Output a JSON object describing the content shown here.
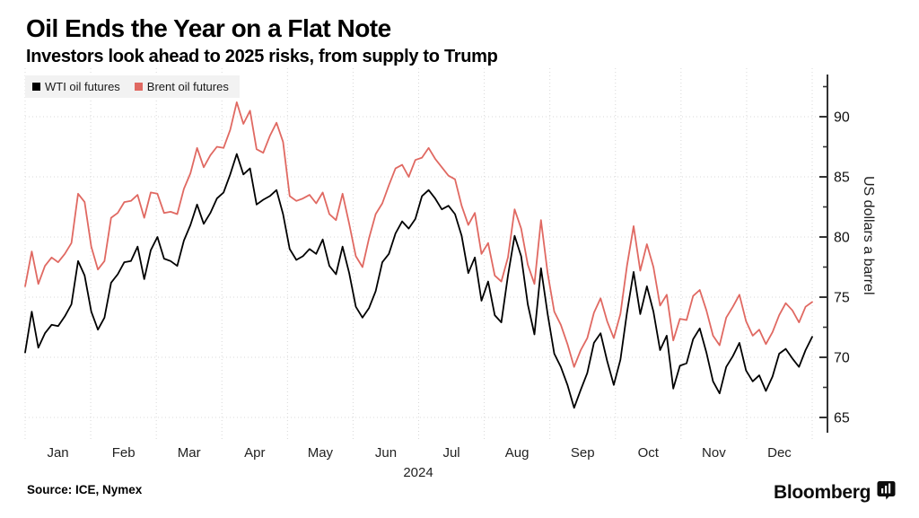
{
  "header": {
    "title": "Oil Ends the Year on a Flat Note",
    "subtitle": "Investors look ahead to 2025 risks, from supply to Trump"
  },
  "legend": [
    {
      "label": "WTI oil futures"
    },
    {
      "label": "Brent oil futures"
    }
  ],
  "footer": {
    "source": "Source: ICE, Nymex",
    "brand": "Bloomberg"
  },
  "chart_data": {
    "type": "line",
    "title": "Oil Ends the Year on a Flat Note",
    "subtitle": "Investors look ahead to 2025 risks, from supply to Trump",
    "xlabel": "2024",
    "ylabel": "US dollars a barrel",
    "x_categories": [
      "Jan",
      "Feb",
      "Mar",
      "Apr",
      "May",
      "Jun",
      "Jul",
      "Aug",
      "Sep",
      "Oct",
      "Nov",
      "Dec"
    ],
    "points_per_month": 10,
    "ylim": [
      63.2,
      93.9
    ],
    "yticks_major": [
      65,
      70,
      75,
      80,
      85,
      90
    ],
    "yticks_minor": [
      67.5,
      72.5,
      77.5,
      82.5,
      87.5,
      92.5
    ],
    "grid": "dotted",
    "legend_position": "top-left",
    "axis_side": "right",
    "colors": {
      "grid": "#d8d8d8",
      "axis": "#333333",
      "tick_label": "#111111",
      "month_label": "#222222"
    },
    "series": [
      {
        "name": "WTI oil futures",
        "id": "wti-line",
        "color": "#000000",
        "values": [
          70.4,
          73.8,
          70.8,
          72.0,
          72.7,
          72.6,
          73.4,
          74.4,
          78.0,
          76.8,
          73.8,
          72.3,
          73.3,
          76.2,
          76.9,
          77.9,
          78.0,
          79.2,
          76.5,
          78.9,
          80.0,
          78.2,
          78.0,
          77.6,
          79.7,
          81.0,
          82.7,
          81.1,
          82.0,
          83.2,
          83.7,
          85.2,
          86.9,
          85.2,
          85.7,
          82.7,
          83.1,
          83.4,
          83.9,
          81.9,
          79.0,
          78.1,
          78.4,
          79.0,
          78.6,
          79.8,
          77.6,
          76.9,
          79.2,
          77.0,
          74.2,
          73.3,
          74.1,
          75.5,
          77.9,
          78.6,
          80.3,
          81.3,
          80.7,
          81.5,
          83.4,
          83.9,
          83.2,
          82.3,
          82.6,
          81.9,
          80.1,
          77.0,
          78.3,
          74.7,
          76.3,
          73.5,
          72.9,
          76.8,
          80.1,
          78.4,
          74.4,
          71.9,
          77.4,
          73.6,
          70.3,
          69.2,
          67.7,
          65.8,
          67.3,
          68.7,
          71.2,
          72.0,
          69.7,
          67.7,
          69.8,
          73.7,
          77.1,
          73.6,
          75.9,
          73.8,
          70.6,
          71.8,
          67.4,
          69.3,
          69.5,
          71.5,
          72.4,
          70.4,
          68.0,
          67.0,
          69.2,
          70.1,
          71.2,
          68.9,
          68.0,
          68.5,
          67.2,
          68.4,
          70.3,
          70.7,
          69.9,
          69.2,
          70.6,
          71.7
        ]
      },
      {
        "name": "Brent oil futures",
        "id": "brent-line",
        "color": "#e06962",
        "values": [
          75.9,
          78.8,
          76.1,
          77.6,
          78.3,
          77.9,
          78.6,
          79.5,
          83.6,
          82.9,
          79.2,
          77.3,
          78.0,
          81.6,
          82.0,
          82.9,
          83.0,
          83.5,
          81.6,
          83.7,
          83.6,
          82.0,
          82.1,
          81.9,
          84.0,
          85.3,
          87.4,
          85.8,
          86.8,
          87.5,
          87.4,
          88.9,
          91.2,
          89.4,
          90.5,
          87.3,
          87.0,
          88.4,
          89.5,
          87.9,
          83.4,
          83.0,
          83.2,
          83.5,
          82.8,
          83.7,
          81.9,
          81.4,
          83.6,
          81.1,
          78.4,
          77.5,
          79.9,
          81.9,
          82.8,
          84.3,
          85.7,
          86.0,
          85.0,
          86.4,
          86.6,
          87.4,
          86.5,
          85.8,
          85.1,
          84.8,
          82.6,
          81.0,
          82.0,
          78.6,
          79.5,
          76.8,
          76.3,
          78.3,
          82.3,
          80.7,
          77.7,
          76.1,
          81.4,
          77.0,
          73.8,
          72.7,
          71.1,
          69.2,
          70.6,
          71.6,
          73.7,
          74.9,
          73.0,
          71.6,
          73.6,
          77.6,
          80.9,
          77.2,
          79.4,
          77.5,
          74.3,
          75.2,
          71.4,
          73.2,
          73.1,
          75.1,
          75.6,
          73.9,
          71.8,
          71.0,
          73.3,
          74.2,
          75.2,
          73.0,
          71.8,
          72.3,
          71.1,
          72.1,
          73.5,
          74.5,
          73.9,
          72.9,
          74.2,
          74.6
        ]
      }
    ]
  }
}
